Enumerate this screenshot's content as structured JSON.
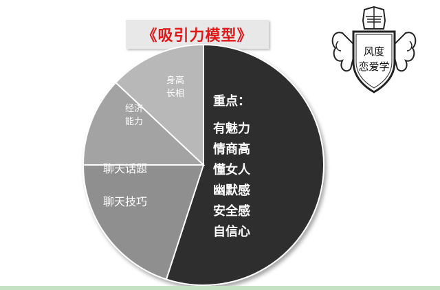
{
  "title": "《吸引力模型》",
  "logo": {
    "line1": "风度",
    "line2": "恋爱学"
  },
  "colors": {
    "title_red": "#e21818",
    "slice_dark": "#2f2f2f",
    "slice_mid": "#8f8f8f",
    "slice_mid_light": "#a3a3a3",
    "slice_light": "#b8b8b8",
    "highlight_gold": "#f6a800",
    "bottom_bar": "#c5e3c4"
  },
  "chart_data": {
    "type": "pie",
    "slices": [
      {
        "value": 55,
        "label_lines": [
          "重点：",
          "有魅力",
          "情商高",
          "懂女人",
          "幽默感",
          "安全感",
          "自信心"
        ]
      },
      {
        "value": 20,
        "label_lines": [
          "聊天话题",
          "聊天技巧"
        ]
      },
      {
        "value": 12,
        "label_lines": [
          "经济",
          "能力"
        ]
      },
      {
        "value": 13,
        "label_lines": [
          "身高",
          "长相"
        ]
      }
    ]
  }
}
